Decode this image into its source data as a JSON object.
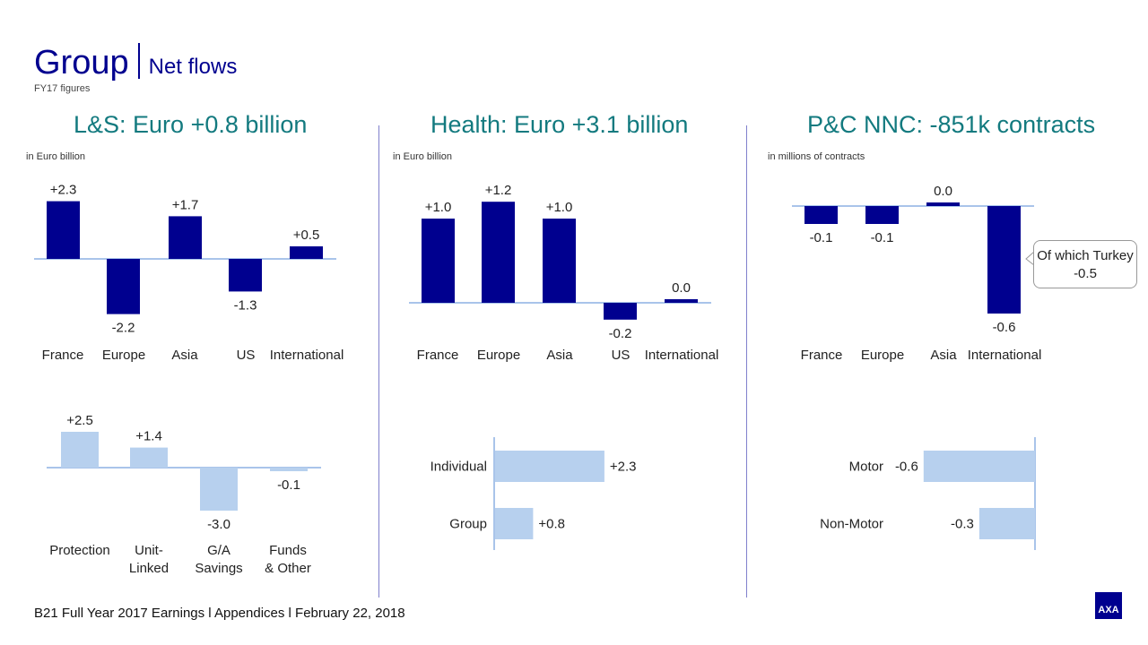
{
  "header": {
    "title": "Group",
    "subtitle": "Net flows",
    "note": "FY17 figures"
  },
  "colors": {
    "dark_bar": "#00008f",
    "light_bar": "#b7d0ee",
    "axis": "#a9c4ea",
    "heading": "#137a7f"
  },
  "sections": [
    {
      "heading": "L&S: Euro +0.8 billion",
      "unit": "in Euro billion"
    },
    {
      "heading": "Health: Euro +3.1 billion",
      "unit": "in Euro billion"
    },
    {
      "heading": "P&C NNC: -851k contracts",
      "unit": "in millions of contracts"
    }
  ],
  "callout": {
    "line1": "Of which Turkey",
    "line2": "-0.5"
  },
  "footer": "B21    Full Year 2017 Earnings l Appendices l February 22, 2018",
  "logo": "AXA",
  "chart_data": [
    {
      "type": "bar",
      "id": "ls_region",
      "categories": [
        "France",
        "Europe",
        "Asia",
        "US",
        "International"
      ],
      "values": [
        2.3,
        -2.2,
        1.7,
        -1.3,
        0.5
      ],
      "labels": [
        "+2.3",
        "-2.2",
        "+1.7",
        "-1.3",
        "+0.5"
      ]
    },
    {
      "type": "bar",
      "id": "ls_product",
      "categories": [
        [
          "Protection"
        ],
        [
          "Unit-",
          "Linked"
        ],
        [
          "G/A",
          "Savings"
        ],
        [
          "Funds",
          "& Other"
        ]
      ],
      "values": [
        2.5,
        1.4,
        -3.0,
        -0.1
      ],
      "labels": [
        "+2.5",
        "+1.4",
        "-3.0",
        "-0.1"
      ]
    },
    {
      "type": "bar",
      "id": "health_region",
      "categories": [
        "France",
        "Europe",
        "Asia",
        "US",
        "International"
      ],
      "values": [
        1.0,
        1.2,
        1.0,
        -0.2,
        0.0
      ],
      "labels": [
        "+1.0",
        "+1.2",
        "+1.0",
        "-0.2",
        "0.0"
      ]
    },
    {
      "type": "bar",
      "id": "pc_region",
      "categories": [
        "France",
        "Europe",
        "Asia",
        "International"
      ],
      "values": [
        -0.1,
        -0.1,
        0.0,
        -0.6
      ],
      "labels": [
        "-0.1",
        "-0.1",
        "0.0",
        "-0.6"
      ]
    },
    {
      "type": "bar",
      "orientation": "horizontal",
      "id": "health_segment",
      "categories": [
        "Individual",
        "Group"
      ],
      "values": [
        2.3,
        0.8
      ],
      "labels": [
        "+2.3",
        "+0.8"
      ]
    },
    {
      "type": "bar",
      "orientation": "horizontal",
      "id": "pc_segment",
      "categories": [
        "Motor",
        "Non-Motor"
      ],
      "values": [
        -0.6,
        -0.3
      ],
      "labels": [
        "-0.6",
        "-0.3"
      ]
    }
  ]
}
